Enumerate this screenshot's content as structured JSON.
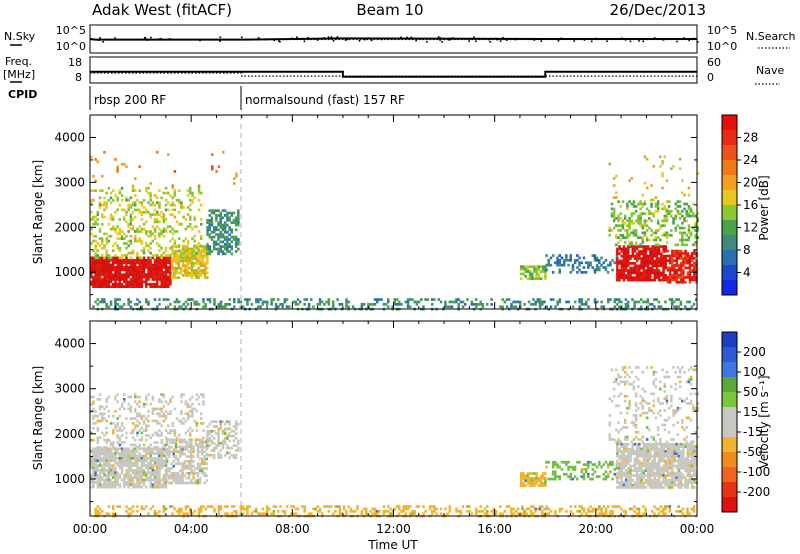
{
  "header": {
    "title_left": "Adak West (fitACF)",
    "title_center": "Beam 10",
    "title_right": "26/Dec/2013"
  },
  "strip": {
    "nsky_label": "N.Sky",
    "nsearch_label": "N.Search",
    "freq_label_1": "Freq.",
    "freq_label_2": "[MHz]",
    "nave_label": "Nave",
    "cpid_label": "CPID",
    "noise_ticks_left": [
      "10^5",
      "10^0"
    ],
    "noise_ticks_right": [
      "10^5",
      "10^0"
    ],
    "freq_ticks_left": [
      "18",
      "8"
    ],
    "nave_ticks_right": [
      "60",
      "0"
    ],
    "cpid_segments": [
      {
        "label": "rbsp 200 RF",
        "start_hour": 0
      },
      {
        "label": "normalsound (fast) 157 RF",
        "start_hour": 6
      }
    ]
  },
  "axes": {
    "xlabel": "Time UT",
    "ylabel": "Slant Range [km]",
    "x_ticks": [
      "00:00",
      "04:00",
      "08:00",
      "12:00",
      "16:00",
      "20:00",
      "00:00"
    ],
    "y_ticks": [
      "1000",
      "2000",
      "3000",
      "4000"
    ]
  },
  "colorbars": {
    "power": {
      "label": "Power [dB]",
      "ticks": [
        "4",
        "8",
        "12",
        "16",
        "20",
        "24",
        "28"
      ]
    },
    "velocity": {
      "label": "Velocity [m s⁻¹]",
      "ticks": [
        "200",
        "100",
        "50",
        "15",
        "-15",
        "-50",
        "-100",
        "-200"
      ]
    }
  },
  "chart_data": [
    {
      "type": "line",
      "title": "N.Sky / N.Search",
      "x_unit": "hours UT",
      "ylim_log10": [
        0,
        5
      ],
      "series": [
        {
          "name": "N.Sky",
          "x": [
            0,
            0.2,
            6,
            10,
            18,
            24
          ],
          "y_log10": [
            2.5,
            2.4,
            2.4,
            2.6,
            2.5,
            2.5
          ],
          "style": "solid"
        },
        {
          "name": "N.Search",
          "x": [
            0,
            24
          ],
          "y_log10": [
            2.4,
            2.4
          ],
          "style": "dotted"
        }
      ]
    },
    {
      "type": "line",
      "title": "Freq. / Nave",
      "x_unit": "hours UT",
      "ylim_freq_mhz": [
        8,
        18
      ],
      "ylim_nave": [
        0,
        60
      ],
      "series": [
        {
          "name": "Freq.",
          "x": [
            0,
            6,
            6,
            10,
            10,
            18,
            18,
            24
          ],
          "y": [
            12.3,
            12.3,
            12.3,
            12.3,
            10.4,
            10.4,
            12.3,
            12.3
          ],
          "style": "solid"
        },
        {
          "name": "Nave",
          "x": [
            0,
            6,
            6,
            24
          ],
          "y_nave": [
            23,
            23,
            16,
            16
          ],
          "style": "dotted"
        }
      ]
    },
    {
      "type": "heatmap",
      "title": "Power",
      "xlabel": "Time UT",
      "ylabel": "Slant Range [km]",
      "xlim_hours": [
        0,
        24
      ],
      "ylim_km": [
        180,
        4500
      ],
      "colorbar": {
        "label": "Power [dB]",
        "range": [
          0,
          32
        ],
        "ticks": [
          4,
          8,
          12,
          16,
          20,
          24,
          28
        ]
      },
      "regions": [
        {
          "t0": 0.0,
          "t1": 3.2,
          "r0": 700,
          "r1": 1350,
          "value": 30,
          "density": 0.9
        },
        {
          "t0": 3.2,
          "t1": 4.6,
          "r0": 900,
          "r1": 1600,
          "value": 18,
          "density": 0.75
        },
        {
          "t0": 4.6,
          "t1": 5.9,
          "r0": 1400,
          "r1": 2400,
          "value": 10,
          "density": 0.55
        },
        {
          "t0": 0.0,
          "t1": 4.4,
          "r0": 1350,
          "r1": 2900,
          "value": 16,
          "density": 0.28
        },
        {
          "t0": 0.0,
          "t1": 6.0,
          "r0": 2900,
          "r1": 3700,
          "value": 22,
          "density": 0.04
        },
        {
          "t0": 0.0,
          "t1": 24.0,
          "r0": 180,
          "r1": 420,
          "value": 10,
          "density": 0.32
        },
        {
          "t0": 17.0,
          "t1": 18.0,
          "r0": 850,
          "r1": 1150,
          "value": 14,
          "density": 0.7
        },
        {
          "t0": 18.0,
          "t1": 20.8,
          "r0": 1000,
          "r1": 1400,
          "value": 8,
          "density": 0.35
        },
        {
          "t0": 20.8,
          "t1": 22.8,
          "r0": 800,
          "r1": 1600,
          "value": 30,
          "density": 0.85
        },
        {
          "t0": 22.8,
          "t1": 24.0,
          "r0": 800,
          "r1": 1500,
          "value": 28,
          "density": 0.8
        },
        {
          "t0": 20.5,
          "t1": 24.0,
          "r0": 1600,
          "r1": 2600,
          "value": 14,
          "density": 0.35
        },
        {
          "t0": 20.5,
          "t1": 24.0,
          "r0": 2600,
          "r1": 3600,
          "value": 18,
          "density": 0.05
        }
      ]
    },
    {
      "type": "heatmap",
      "title": "Velocity",
      "xlabel": "Time UT",
      "ylabel": "Slant Range [km]",
      "xlim_hours": [
        0,
        24
      ],
      "ylim_km": [
        180,
        4500
      ],
      "colorbar": {
        "label": "Velocity [m s⁻¹]",
        "ticks": [
          200,
          100,
          50,
          15,
          -15,
          -50,
          -100,
          -200
        ]
      },
      "regions": [
        {
          "t0": 0.0,
          "t1": 3.0,
          "r0": 800,
          "r1": 1700,
          "value": 0,
          "density": 0.85
        },
        {
          "t0": 3.0,
          "t1": 4.6,
          "r0": 900,
          "r1": 1900,
          "value": 0,
          "density": 0.6
        },
        {
          "t0": 4.6,
          "t1": 5.9,
          "r0": 1500,
          "r1": 2300,
          "value": 0,
          "density": 0.55
        },
        {
          "t0": 0.0,
          "t1": 4.5,
          "r0": 1700,
          "r1": 2900,
          "value": 0,
          "density": 0.25
        },
        {
          "t0": 0.0,
          "t1": 24.0,
          "r0": 180,
          "r1": 420,
          "value": -40,
          "density": 0.35
        },
        {
          "t0": 17.0,
          "t1": 18.0,
          "r0": 850,
          "r1": 1150,
          "value": -40,
          "density": 0.7
        },
        {
          "t0": 18.0,
          "t1": 20.8,
          "r0": 1000,
          "r1": 1400,
          "value": 20,
          "density": 0.35
        },
        {
          "t0": 20.8,
          "t1": 24.0,
          "r0": 800,
          "r1": 1800,
          "value": 0,
          "density": 0.85
        },
        {
          "t0": 20.5,
          "t1": 24.0,
          "r0": 1800,
          "r1": 3500,
          "value": 0,
          "density": 0.2
        }
      ]
    }
  ]
}
